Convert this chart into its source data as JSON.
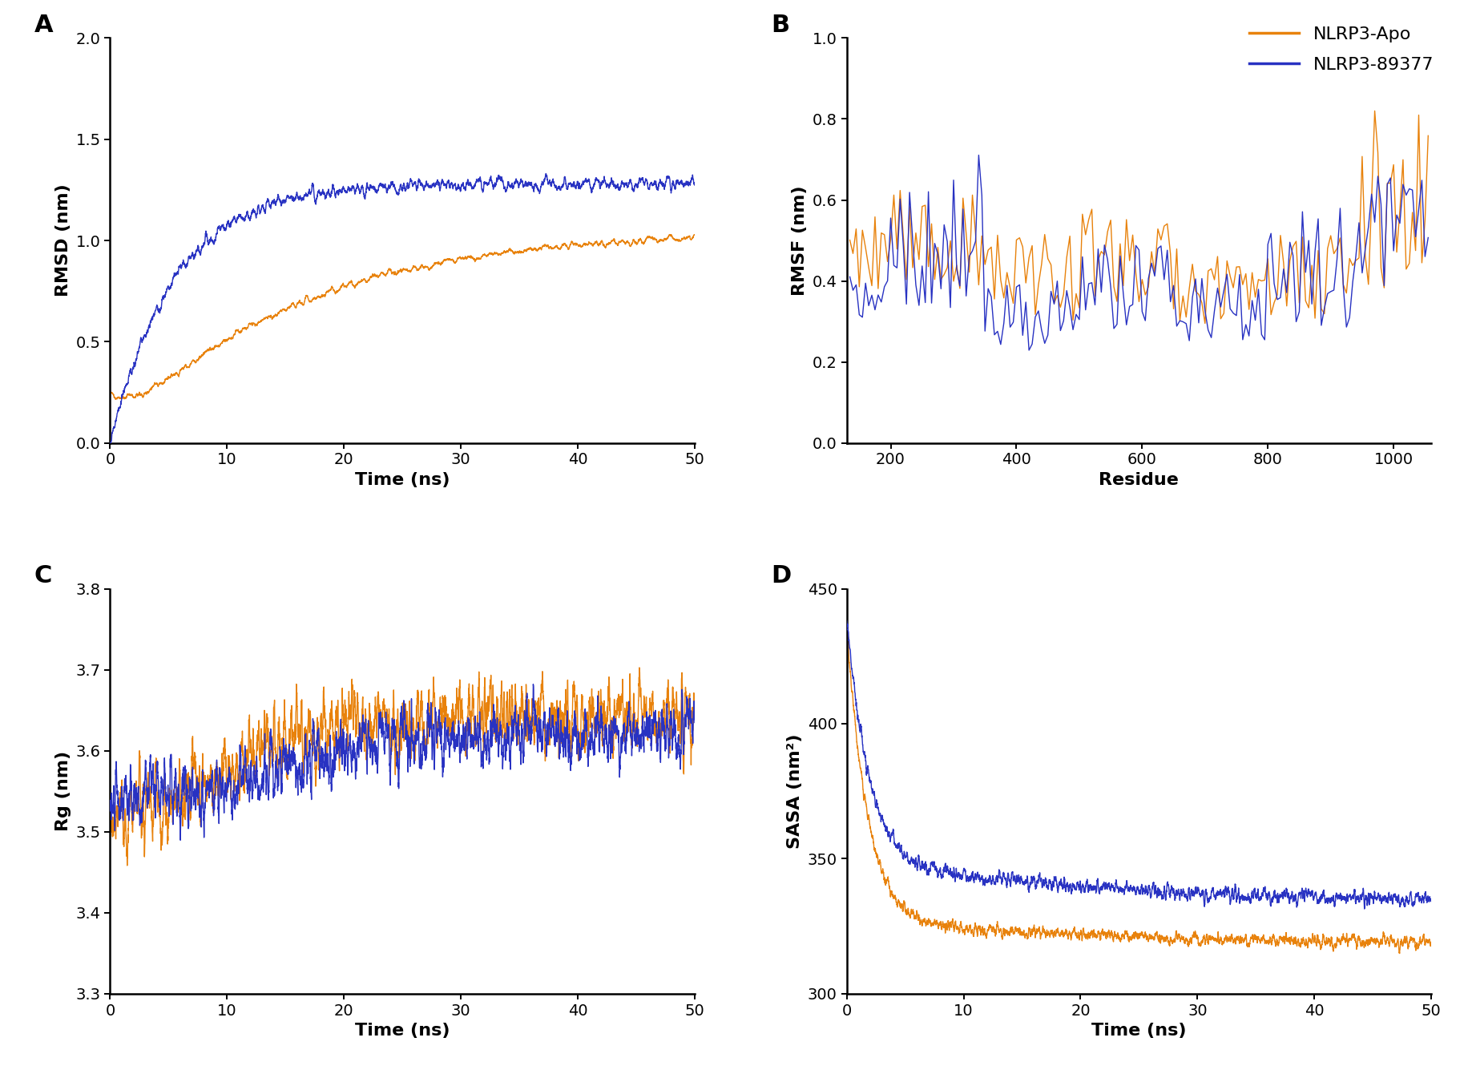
{
  "orange_color": "#E8820C",
  "blue_color": "#2832C2",
  "background_color": "#ffffff",
  "panel_labels": [
    "A",
    "B",
    "C",
    "D"
  ],
  "panel_label_fontsize": 22,
  "axis_label_fontsize": 16,
  "tick_label_fontsize": 14,
  "legend_fontsize": 16,
  "legend_labels": [
    "NLRP3-Apo",
    "NLRP3-89377"
  ],
  "subplot_A": {
    "xlabel": "Time (ns)",
    "ylabel": "RMSD (nm)",
    "xlim": [
      0,
      50
    ],
    "ylim": [
      0.0,
      2.0
    ],
    "xticks": [
      0,
      10,
      20,
      30,
      40,
      50
    ],
    "yticks": [
      0.0,
      0.5,
      1.0,
      1.5,
      2.0
    ]
  },
  "subplot_B": {
    "xlabel": "Residue",
    "ylabel": "RMSF (nm)",
    "xlim": [
      130,
      1060
    ],
    "ylim": [
      0.0,
      1.0
    ],
    "xticks": [
      200,
      400,
      600,
      800,
      1000
    ],
    "yticks": [
      0.0,
      0.2,
      0.4,
      0.6,
      0.8,
      1.0
    ]
  },
  "subplot_C": {
    "xlabel": "Time (ns)",
    "ylabel": "Rg (nm)",
    "xlim": [
      0,
      50
    ],
    "ylim": [
      3.3,
      3.8
    ],
    "xticks": [
      0,
      10,
      20,
      30,
      40,
      50
    ],
    "yticks": [
      3.3,
      3.4,
      3.5,
      3.6,
      3.7,
      3.8
    ]
  },
  "subplot_D": {
    "xlabel": "Time (ns)",
    "ylabel": "SASA (nm²)",
    "xlim": [
      0,
      50
    ],
    "ylim": [
      300,
      450
    ],
    "xticks": [
      0,
      10,
      20,
      30,
      40,
      50
    ],
    "yticks": [
      300,
      350,
      400,
      450
    ]
  }
}
